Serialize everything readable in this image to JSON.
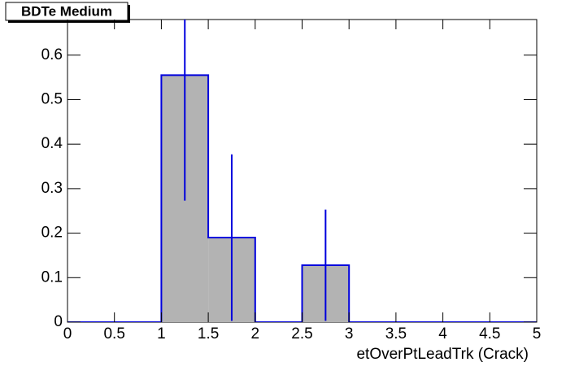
{
  "chart_data": {
    "type": "histogram",
    "title": "BDTe Medium",
    "x_label": "etOverPtLeadTrk (Crack)",
    "bins": [
      0,
      0.5,
      1,
      1.5,
      2,
      2.5,
      3,
      3.5,
      4,
      4.5,
      5
    ],
    "values": [
      0,
      0,
      0.555,
      0.19,
      0,
      0.128,
      0,
      0,
      0,
      0
    ],
    "errors": [
      0,
      0,
      0.282,
      0.187,
      0,
      0.125,
      0,
      0,
      0,
      0
    ],
    "fill_color": "#b3b3b3",
    "line_color": "#0000dd",
    "xlim": [
      0,
      5
    ],
    "xticks": [
      0,
      0.5,
      1,
      1.5,
      2,
      2.5,
      3,
      3.5,
      4,
      4.5,
      5
    ],
    "ylim": [
      0,
      0.68
    ],
    "yticks": [
      0,
      0.1,
      0.2,
      0.3,
      0.4,
      0.5,
      0.6
    ]
  }
}
